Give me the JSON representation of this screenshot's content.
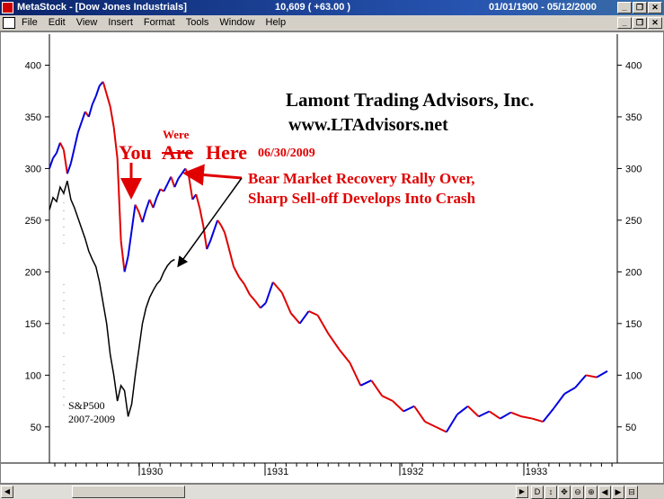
{
  "window": {
    "title": "MetaStock - [Dow Jones Industrials]",
    "value": "10,609 ( +63.00 )",
    "date_range": "01/01/1900 - 05/12/2000"
  },
  "menu": [
    "File",
    "Edit",
    "View",
    "Insert",
    "Format",
    "Tools",
    "Window",
    "Help"
  ],
  "annotations": {
    "company": "Lamont Trading Advisors, Inc.",
    "website": "www.LTAdvisors.net",
    "you": "You",
    "are": "Are",
    "were": "Were",
    "here": "Here",
    "date": "06/30/2009",
    "bear_line1": "Bear Market Recovery Rally Over,",
    "bear_line2": "Sharp Sell-off Develops Into Crash",
    "sp_label": "S&P500",
    "sp_years": "2007-2009"
  },
  "toolstrip": [
    "D",
    "↕",
    "✥",
    "⊖",
    "⊕",
    "◀",
    "▶",
    "⊟"
  ],
  "colors": {
    "down": "#e00000",
    "up": "#0000e0",
    "sp": "#000000",
    "annotation": "#e00000"
  },
  "chart_data": {
    "type": "line",
    "ylim": [
      15,
      430
    ],
    "yticks": [
      50,
      100,
      150,
      200,
      250,
      300,
      350,
      400
    ],
    "xticks": [
      "1930",
      "1931",
      "1932",
      "1933"
    ],
    "grid": false,
    "series": [
      {
        "x": [
          0,
          4,
          8,
          12,
          16,
          20,
          24,
          28,
          32,
          36,
          40,
          44,
          48,
          52,
          56,
          60,
          64,
          68,
          72,
          76,
          80,
          84,
          88,
          92,
          96,
          100,
          104,
          108,
          112,
          116,
          120,
          124,
          128,
          132,
          136,
          140,
          144,
          148,
          152,
          156,
          160,
          164,
          168,
          172,
          176,
          180,
          184,
          188,
          192,
          196,
          200,
          206,
          212,
          218,
          224,
          230,
          236,
          242,
          250,
          260,
          270,
          280,
          290,
          300,
          312,
          324,
          336,
          348,
          360,
          372,
          384,
          396,
          408,
          420,
          432,
          444,
          456,
          468,
          480,
          492,
          504,
          516,
          528,
          540,
          552,
          564,
          576,
          588,
          600,
          612,
          624
        ],
        "values": [
          300,
          310,
          315,
          325,
          318,
          295,
          305,
          320,
          335,
          345,
          355,
          350,
          362,
          370,
          380,
          384,
          372,
          360,
          340,
          310,
          230,
          200,
          215,
          240,
          265,
          258,
          248,
          260,
          270,
          262,
          272,
          280,
          278,
          285,
          292,
          282,
          290,
          295,
          300,
          292,
          270,
          275,
          262,
          245,
          222,
          230,
          240,
          250,
          245,
          238,
          225,
          205,
          195,
          188,
          178,
          172,
          165,
          170,
          190,
          180,
          160,
          150,
          162,
          158,
          140,
          125,
          112,
          90,
          95,
          80,
          75,
          65,
          70,
          55,
          50,
          45,
          62,
          70,
          60,
          65,
          58,
          64,
          60,
          58,
          55,
          68,
          82,
          88,
          100,
          98,
          104
        ]
      },
      {
        "x": [
          0,
          4,
          8,
          12,
          16,
          20,
          24,
          28,
          32,
          36,
          40,
          44,
          48,
          52,
          56,
          60,
          64,
          68,
          72,
          76,
          80,
          84,
          88,
          92,
          96,
          100,
          104,
          108,
          112,
          116,
          120,
          124,
          128,
          132,
          136,
          140
        ],
        "values": [
          260,
          272,
          268,
          282,
          276,
          288,
          270,
          262,
          252,
          242,
          232,
          220,
          212,
          205,
          190,
          170,
          150,
          120,
          100,
          75,
          90,
          85,
          60,
          72,
          100,
          125,
          150,
          165,
          175,
          182,
          188,
          192,
          200,
          206,
          210,
          212
        ]
      }
    ]
  }
}
